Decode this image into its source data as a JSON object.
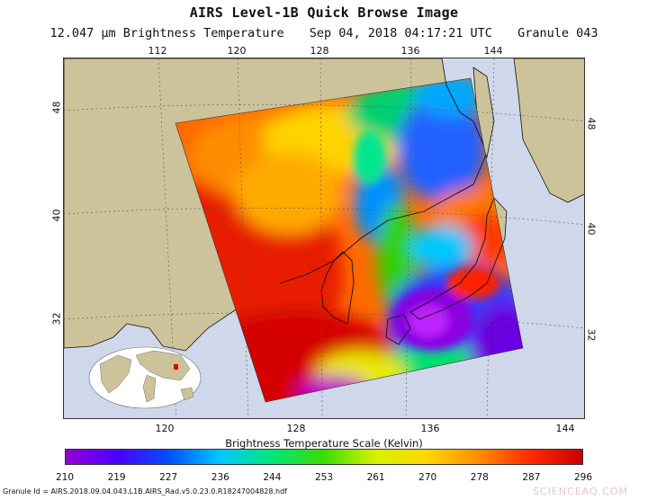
{
  "header": {
    "title": "AIRS Level-1B Quick Browse Image",
    "channel": "12.047 µm Brightness Temperature",
    "datetime": "Sep 04, 2018 04:17:21 UTC",
    "granule": "Granule 043"
  },
  "map": {
    "top_lon_labels": [
      "112",
      "120",
      "128",
      "136",
      "144"
    ],
    "bottom_lon_labels": [
      "120",
      "128",
      "136",
      "144"
    ],
    "left_lat_labels": [
      "48",
      "40",
      "32"
    ],
    "right_lat_labels": [
      "48",
      "40",
      "32"
    ],
    "colors": {
      "land": "#ccc39a",
      "ocean": "#cfd8ea",
      "coast": "#111111"
    }
  },
  "colorbar": {
    "title": "Brightness Temperature Scale (Kelvin)",
    "ticks": [
      "210",
      "219",
      "227",
      "236",
      "244",
      "253",
      "261",
      "270",
      "278",
      "287",
      "296"
    ],
    "min_kelvin": 210,
    "max_kelvin": 296,
    "colormap": [
      "#9400d3",
      "#4b00ff",
      "#0050ff",
      "#00c8ff",
      "#00e67a",
      "#3cdc00",
      "#d7f000",
      "#ffd700",
      "#ff8c00",
      "#ff2a00",
      "#c80000"
    ]
  },
  "footer": {
    "granule_id": "Granule Id = AIRS.2018.09.04.043.L1B.AIRS_Rad.v5.0.23.0.R18247004828.hdf",
    "watermark": "SCIENCEAQ.COM"
  }
}
